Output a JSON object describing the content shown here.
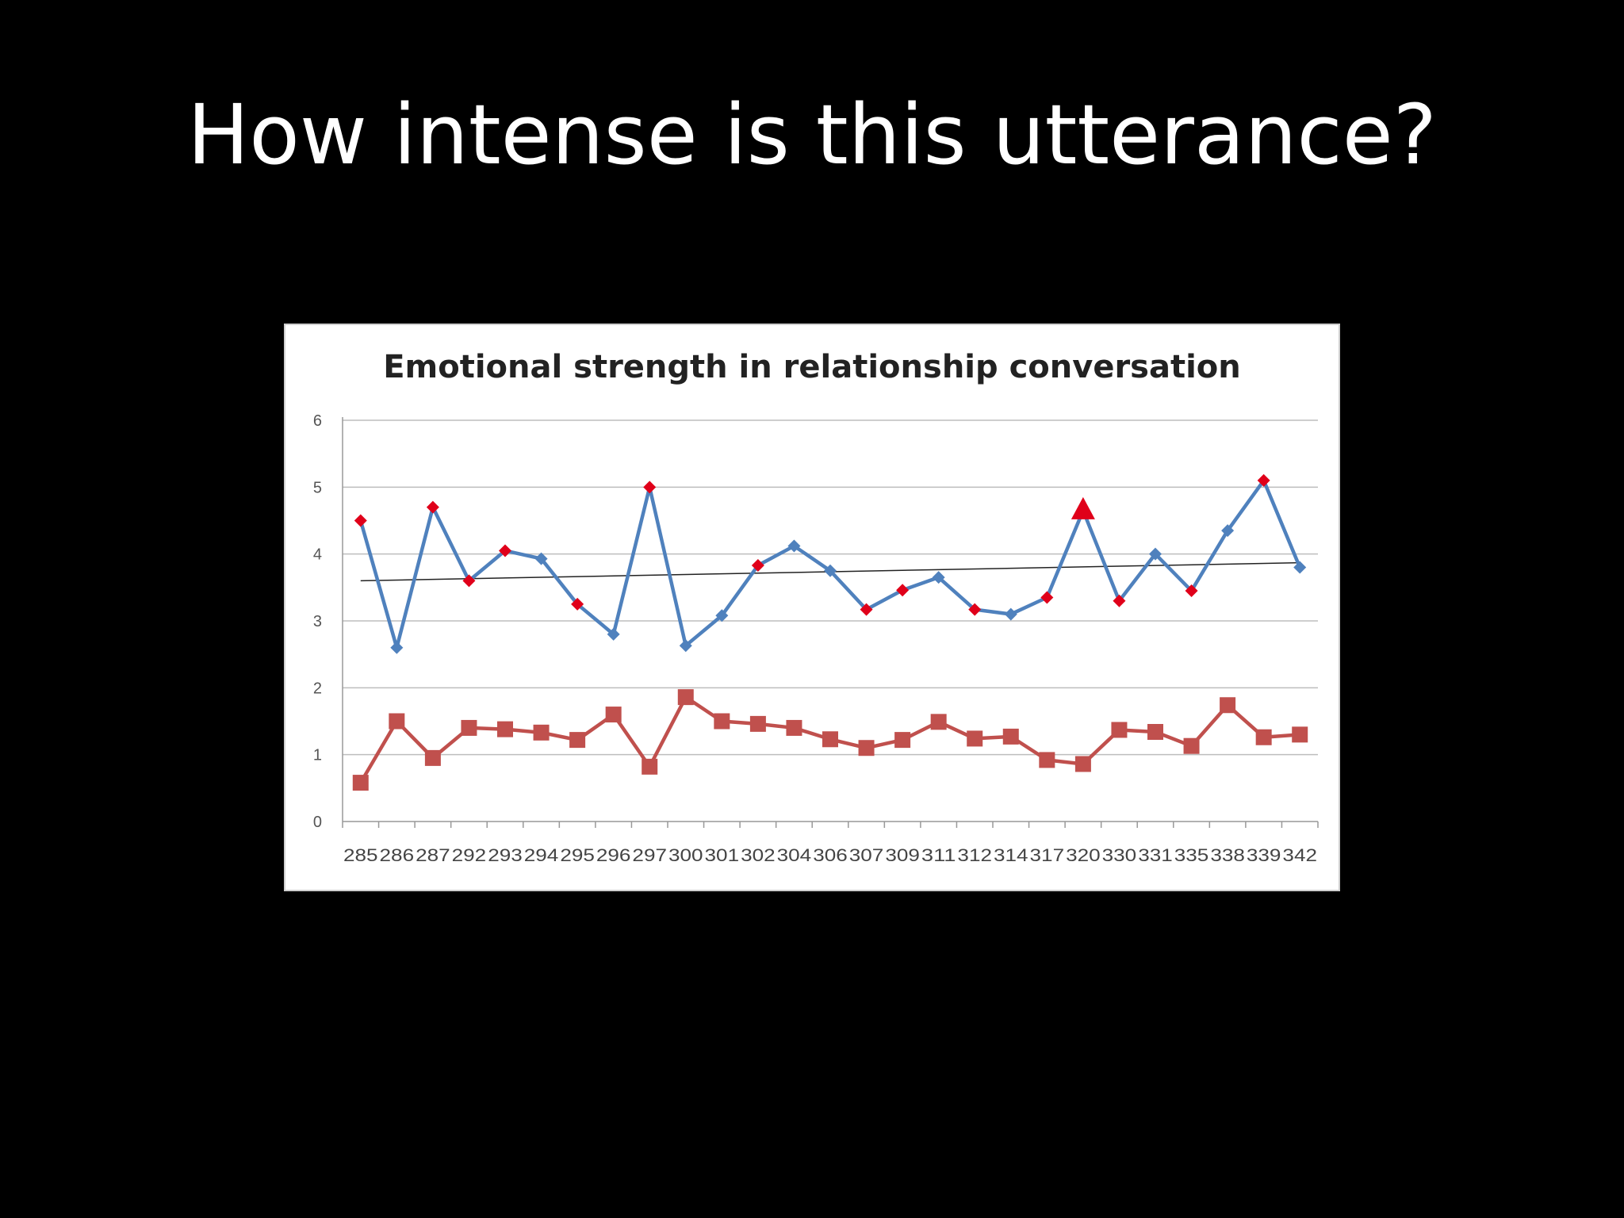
{
  "slide": {
    "title": "How intense is this utterance?"
  },
  "chart_data": {
    "type": "line",
    "title": "Emotional strength in relationship conversation",
    "xlabel": "",
    "ylabel": "",
    "ylim": [
      0,
      6
    ],
    "yticks": [
      0,
      1,
      2,
      3,
      4,
      5,
      6
    ],
    "grid": true,
    "legend": "none",
    "categories": [
      "285",
      "286",
      "287",
      "292",
      "293",
      "294",
      "295",
      "296",
      "297",
      "300",
      "301",
      "302",
      "304",
      "306",
      "307",
      "309",
      "311",
      "312",
      "314",
      "317",
      "320",
      "330",
      "331",
      "335",
      "338",
      "339",
      "342"
    ],
    "series": [
      {
        "color": "#4f81bd",
        "marker": "diamond",
        "values": [
          4.5,
          2.6,
          4.7,
          3.6,
          4.05,
          3.93,
          3.25,
          2.8,
          5.0,
          2.63,
          3.08,
          3.83,
          4.12,
          3.75,
          3.17,
          3.46,
          3.65,
          3.17,
          3.1,
          3.35,
          4.65,
          3.3,
          4.0,
          3.45,
          4.35,
          5.1,
          3.8
        ],
        "highlight_color": "#e0001a",
        "highlighted_points": [
          "285",
          "287",
          "292",
          "293",
          "295",
          "297",
          "302",
          "307",
          "309",
          "312",
          "317",
          "320",
          "330",
          "335",
          "339"
        ],
        "triangle_marker_point": "320"
      },
      {
        "color": "#c0504d",
        "marker": "square",
        "values": [
          0.58,
          1.5,
          0.95,
          1.4,
          1.38,
          1.33,
          1.22,
          1.6,
          0.82,
          1.86,
          1.5,
          1.46,
          1.4,
          1.23,
          1.1,
          1.22,
          1.49,
          1.24,
          1.27,
          0.92,
          0.86,
          1.37,
          1.34,
          1.13,
          1.74,
          1.26,
          1.3
        ]
      }
    ],
    "trendline": {
      "color": "#222222",
      "start": 3.6,
      "end": 3.87
    }
  }
}
